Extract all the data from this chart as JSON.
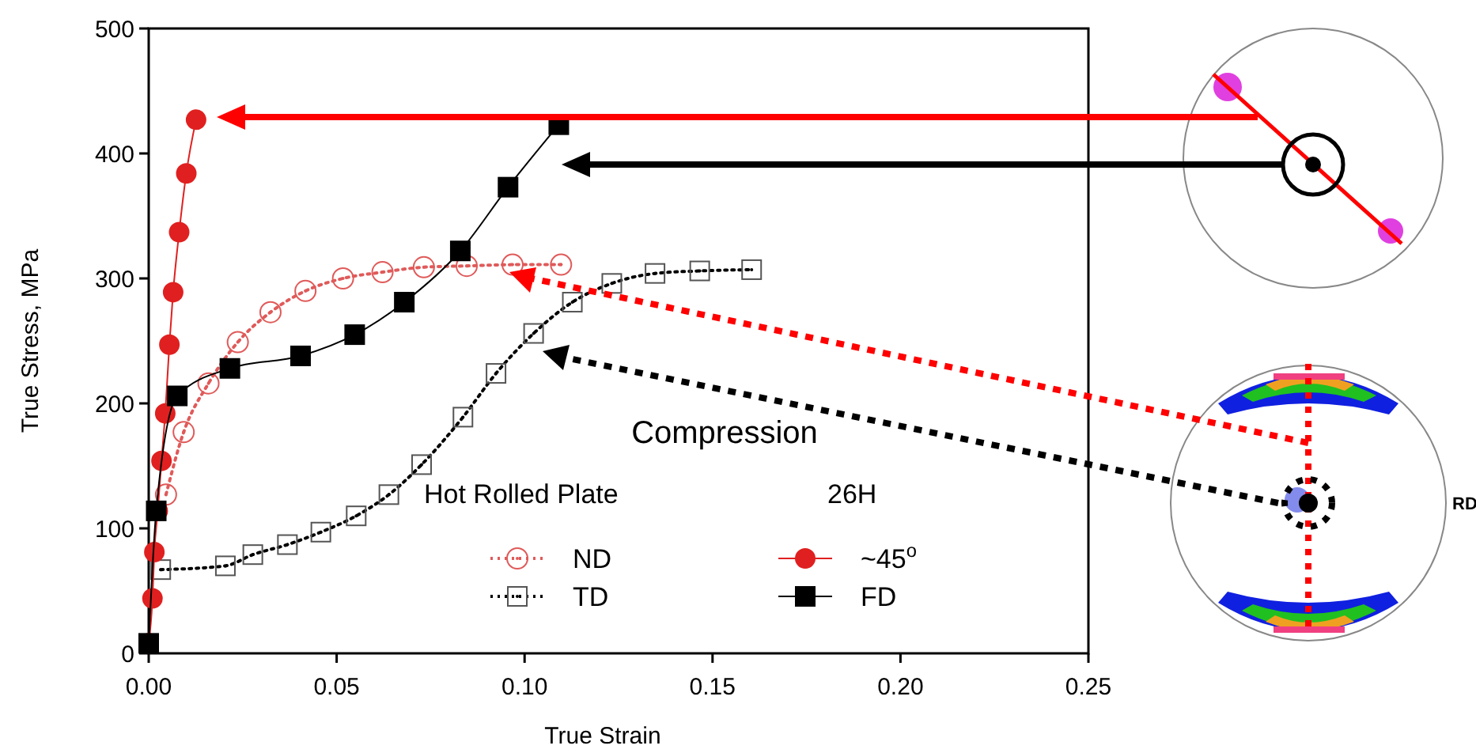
{
  "chart_data": {
    "type": "line",
    "xlabel": "True Strain",
    "ylabel": "True Stress, MPa",
    "xlim": [
      0,
      0.25
    ],
    "ylim": [
      0,
      500
    ],
    "xticks": [
      {
        "value": 0,
        "label": "0.00"
      },
      {
        "value": 0.05,
        "label": "0.05"
      },
      {
        "value": 0.1,
        "label": "0.10"
      },
      {
        "value": 0.15,
        "label": "0.15"
      },
      {
        "value": 0.2,
        "label": "0.20"
      },
      {
        "value": 0.25,
        "label": "0.25"
      }
    ],
    "yticks": [
      0,
      100,
      200,
      300,
      400,
      500
    ],
    "grid": false,
    "legend": "bottom",
    "annotations": [
      "Compression",
      "Hot Rolled Plate",
      "26H",
      "RD"
    ],
    "series": [
      {
        "name": "ND",
        "color": "#e05a5a",
        "marker": "circle",
        "line_style": "dotted",
        "x": [
          0.0046,
          0.0093,
          0.0159,
          0.0237,
          0.0324,
          0.0417,
          0.0517,
          0.0622,
          0.0732,
          0.0846,
          0.0968,
          0.1097
        ],
        "values": [
          127,
          177,
          216,
          249,
          273,
          290,
          300,
          305,
          309,
          310,
          311,
          311
        ]
      },
      {
        "name": "TD",
        "color": "#000000",
        "marker": "square",
        "line_style": "dotted",
        "x": [
          0.0032,
          0.0204,
          0.0277,
          0.0369,
          0.0458,
          0.0552,
          0.0639,
          0.0726,
          0.0836,
          0.0924,
          0.1024,
          0.1127,
          0.1232,
          0.1347,
          0.1466,
          0.1604
        ],
        "values": [
          67,
          70,
          79,
          87,
          97,
          110,
          127,
          151,
          189,
          224,
          256,
          281,
          296,
          304,
          306,
          307
        ]
      },
      {
        "name": "~45$^{o}$",
        "color": "#e02020",
        "marker": "circle",
        "line_style": "solid",
        "x": [
          0,
          0.001,
          0.0015,
          0.0024,
          0.0034,
          0.0044,
          0.0055,
          0.0065,
          0.0081,
          0.01,
          0.0126
        ],
        "values": [
          8,
          44,
          81,
          114,
          154,
          192,
          247,
          289,
          337,
          384,
          427
        ]
      },
      {
        "name": "FD",
        "color": "#000000",
        "marker": "square",
        "line_style": "solid",
        "x": [
          0,
          0.002,
          0.0076,
          0.0216,
          0.0404,
          0.0548,
          0.068,
          0.0829,
          0.0956,
          0.1091
        ],
        "values": [
          8,
          114,
          206,
          228,
          238,
          255,
          281,
          322,
          373,
          423
        ]
      }
    ]
  }
}
